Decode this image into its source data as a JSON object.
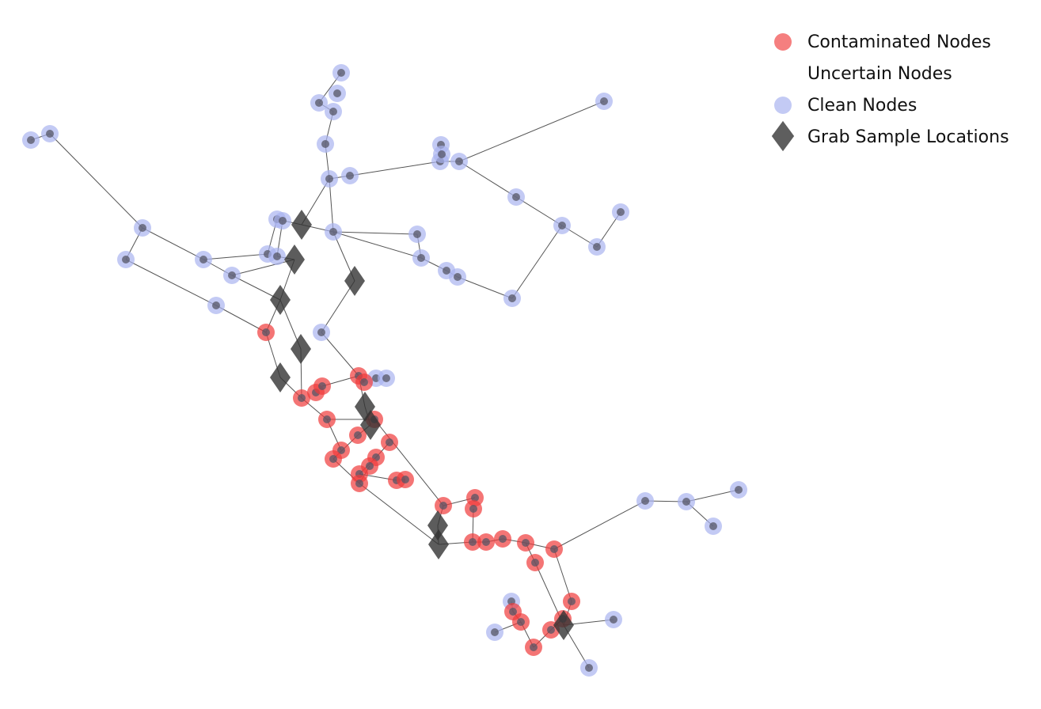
{
  "legend": {
    "contaminated": "Contaminated Nodes",
    "uncertain": "Uncertain Nodes",
    "clean": "Clean Nodes",
    "grab": "Grab Sample Locations"
  },
  "colors": {
    "contaminated": "#f03a3a",
    "clean": "#aab4f0",
    "node_core": "#555566",
    "grab": "#333333",
    "edge": "#555555",
    "text": "#111111"
  }
}
